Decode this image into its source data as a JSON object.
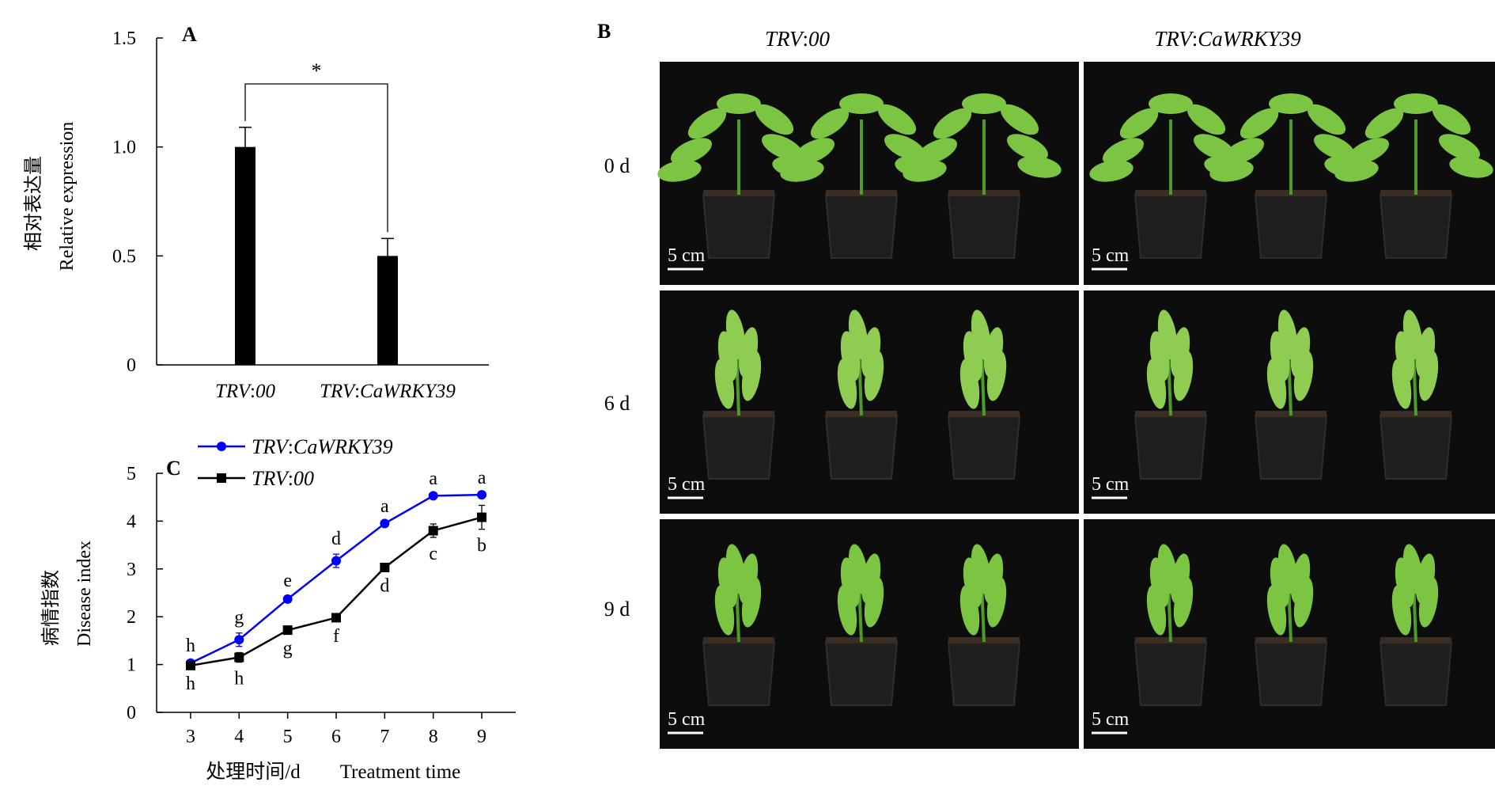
{
  "panels": {
    "a": "A",
    "b": "B",
    "c": "C"
  },
  "chart_data": [
    {
      "type": "bar",
      "panel": "A",
      "ylabel_cn": "相对表达量",
      "ylabel": "Relative expression",
      "categories": [
        "TRV:00",
        "TRV:CaWRKY39"
      ],
      "category_parts": [
        [
          "TRV",
          ":",
          "00"
        ],
        [
          "TRV",
          ":",
          "CaWRKY39"
        ]
      ],
      "values": [
        1.0,
        0.5
      ],
      "errors": [
        0.09,
        0.08
      ],
      "ylim": [
        0,
        1.5
      ],
      "yticks": [
        0,
        0.5,
        1.0,
        1.5
      ],
      "ytick_labels": [
        "0",
        "0.5",
        "1.0",
        "1.5"
      ],
      "significance": "*",
      "bar_color": "#000000"
    },
    {
      "type": "line",
      "panel": "C",
      "ylabel_cn": "病情指数",
      "ylabel": "Disease index",
      "xlabel_cn": "处理时间/d",
      "xlabel": "Treatment time",
      "x": [
        3,
        4,
        5,
        6,
        7,
        8,
        9
      ],
      "xlim": [
        2.3,
        9.7
      ],
      "ylim": [
        0,
        5
      ],
      "yticks": [
        0,
        1,
        2,
        3,
        4,
        5
      ],
      "series": [
        {
          "name": "TRV:CaWRKY39",
          "name_parts": [
            "TRV",
            ":",
            "CaWRKY39"
          ],
          "color": "#0000ff",
          "marker": "circle",
          "values": [
            1.03,
            1.52,
            2.37,
            3.17,
            3.95,
            4.53,
            4.55
          ],
          "errors": [
            0.05,
            0.14,
            0.06,
            0.14,
            0.04,
            0.04,
            0.04
          ],
          "labels": [
            "h",
            "g",
            "e",
            "d",
            "a",
            "a",
            "a"
          ]
        },
        {
          "name": "TRV:00",
          "name_parts": [
            "TRV",
            ":",
            "00"
          ],
          "color": "#000000",
          "marker": "square",
          "values": [
            0.98,
            1.15,
            1.72,
            1.98,
            3.03,
            3.8,
            4.08
          ],
          "errors": [
            0.04,
            0.1,
            0.04,
            0.04,
            0.04,
            0.14,
            0.25
          ],
          "labels": [
            "h",
            "h",
            "g",
            "f",
            "d",
            "c",
            "b"
          ]
        }
      ]
    }
  ],
  "photos": {
    "columns": [
      [
        "TRV",
        ":",
        "00"
      ],
      [
        "TRV",
        ":",
        "CaWRKY39"
      ]
    ],
    "rows": [
      "0 d",
      "6 d",
      "9 d"
    ],
    "scale_label": "5 cm",
    "background": "#0d0d0d"
  }
}
